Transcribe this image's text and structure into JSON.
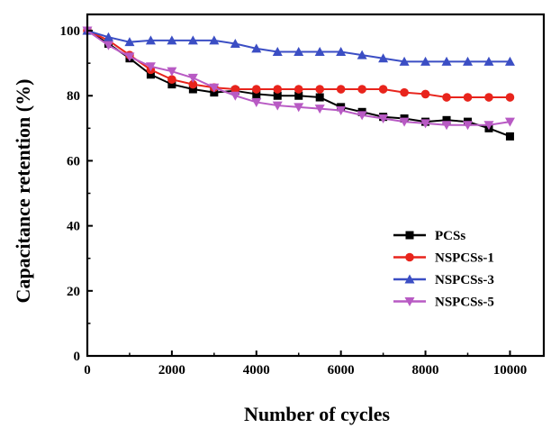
{
  "chart_data": {
    "type": "line",
    "xlabel": "Number of cycles",
    "ylabel": "Capacitance retention (%)",
    "xlim": [
      0,
      10800
    ],
    "ylim": [
      0,
      105
    ],
    "xticks": [
      0,
      2000,
      4000,
      6000,
      8000,
      10000
    ],
    "yticks": [
      0,
      20,
      40,
      60,
      80,
      100
    ],
    "grid": false,
    "legend_position": "bottom-right",
    "series": [
      {
        "name": "PCSs",
        "color": "#000000",
        "marker": "square",
        "x": [
          0,
          500,
          1000,
          1500,
          2000,
          2500,
          3000,
          3500,
          4000,
          4500,
          5000,
          5500,
          6000,
          6500,
          7000,
          7500,
          8000,
          8500,
          9000,
          9500,
          10000
        ],
        "y": [
          100,
          96,
          91.5,
          86.5,
          83.5,
          82,
          81,
          81.5,
          80.5,
          80,
          80,
          79.5,
          76.5,
          75,
          73.5,
          73,
          72,
          72.5,
          72,
          70,
          67.5
        ]
      },
      {
        "name": "NSPCSs-1",
        "color": "#e8241c",
        "marker": "circle",
        "x": [
          0,
          500,
          1000,
          1500,
          2000,
          2500,
          3000,
          3500,
          4000,
          4500,
          5000,
          5500,
          6000,
          6500,
          7000,
          7500,
          8000,
          8500,
          9000,
          9500,
          10000
        ],
        "y": [
          100,
          97,
          92.5,
          88,
          85,
          83.5,
          82.5,
          82,
          82,
          82,
          82,
          82,
          82,
          82,
          82,
          81,
          80.5,
          79.5,
          79.5,
          79.5,
          79.5
        ]
      },
      {
        "name": "NSPCSs-3",
        "color": "#3b4ec4",
        "marker": "triangle-up",
        "x": [
          0,
          500,
          1000,
          1500,
          2000,
          2500,
          3000,
          3500,
          4000,
          4500,
          5000,
          5500,
          6000,
          6500,
          7000,
          7500,
          8000,
          8500,
          9000,
          9500,
          10000
        ],
        "y": [
          100,
          98,
          96.5,
          97,
          97,
          97,
          97,
          96,
          94.5,
          93.5,
          93.5,
          93.5,
          93.5,
          92.5,
          91.5,
          90.5,
          90.5,
          90.5,
          90.5,
          90.5,
          90.5
        ]
      },
      {
        "name": "NSPCSs-5",
        "color": "#b85ac4",
        "marker": "triangle-down",
        "x": [
          0,
          500,
          1000,
          1500,
          2000,
          2500,
          3000,
          3500,
          4000,
          4500,
          5000,
          5500,
          6000,
          6500,
          7000,
          7500,
          8000,
          8500,
          9000,
          9500,
          10000
        ],
        "y": [
          100,
          95.5,
          92,
          89,
          87.5,
          85.5,
          82.5,
          80,
          78,
          77,
          76.5,
          76,
          75.5,
          74,
          73,
          72,
          71.5,
          71,
          71,
          71,
          72
        ]
      }
    ]
  }
}
